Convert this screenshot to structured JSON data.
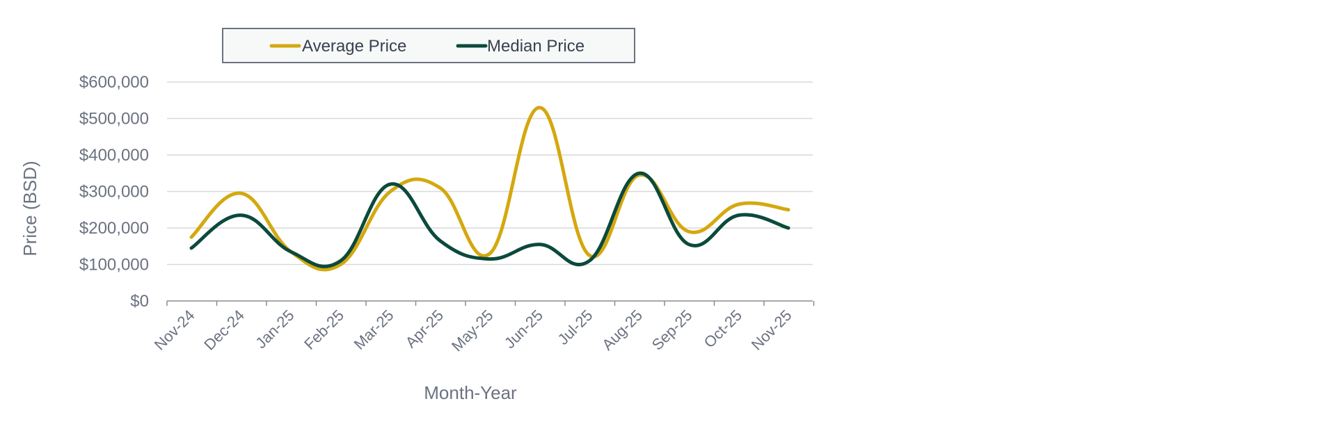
{
  "chart_data": {
    "type": "line",
    "title": "",
    "xlabel": "Month-Year",
    "ylabel": "Price (BSD)",
    "categories": [
      "Nov-24",
      "Dec-24",
      "Jan-25",
      "Feb-25",
      "Mar-25",
      "Apr-25",
      "May-25",
      "Jun-25",
      "Jul-25",
      "Aug-25",
      "Sep-25",
      "Oct-25",
      "Nov-25"
    ],
    "ylim": [
      0,
      600000
    ],
    "yticks": [
      0,
      100000,
      200000,
      300000,
      400000,
      500000,
      600000
    ],
    "ytick_labels": [
      "$0",
      "$100,000",
      "$200,000",
      "$300,000",
      "$400,000",
      "$500,000",
      "$600,000"
    ],
    "grid": true,
    "legend_position": "top",
    "series": [
      {
        "name": "Average Price",
        "color": "#d4a80f",
        "values": [
          175000,
          295000,
          135000,
          100000,
          300000,
          310000,
          130000,
          530000,
          125000,
          345000,
          190000,
          265000,
          250000
        ]
      },
      {
        "name": "Median Price",
        "color": "#0b4a3c",
        "values": [
          145000,
          235000,
          135000,
          110000,
          320000,
          165000,
          115000,
          155000,
          110000,
          350000,
          155000,
          235000,
          200000
        ]
      }
    ]
  }
}
